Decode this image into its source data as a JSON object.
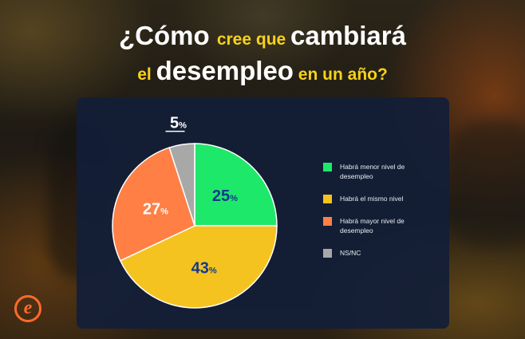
{
  "header": {
    "line1": [
      {
        "text": "¿Cómo ",
        "style": "big"
      },
      {
        "text": "cree que ",
        "style": "small"
      },
      {
        "text": "cambiará",
        "style": "big"
      }
    ],
    "line2": [
      {
        "text": "el ",
        "style": "small"
      },
      {
        "text": "desempleo",
        "style": "big"
      },
      {
        "text": " en un año?",
        "style": "small"
      }
    ]
  },
  "chart_data": {
    "type": "pie",
    "labels": [
      "Habrá menor nivel de desempleo",
      "Habrá el mismo nivel",
      "Habrá mayor nivel de desempleo",
      "NS/NC"
    ],
    "values": [
      25,
      43,
      27,
      5
    ],
    "value_labels": [
      "25",
      "43",
      "27",
      "5"
    ],
    "unit": "%",
    "colors": [
      "#1ee86a",
      "#f4c320",
      "#ff7f45",
      "#a8a8a8"
    ],
    "start_angle_deg": 0,
    "direction": "clockwise",
    "legend_position": "right"
  },
  "legend_lines": [
    [
      "Habrá menor nivel de",
      "desempleo"
    ],
    [
      "Habrá el mismo nivel"
    ],
    [
      "Habrá mayor nivel de",
      "desempleo"
    ],
    [
      "NS/NC"
    ]
  ],
  "logo_letter": "e",
  "colors": {
    "accent_yellow": "#f7d21c",
    "panel": "#121e38",
    "value_text": "#123a8c"
  }
}
